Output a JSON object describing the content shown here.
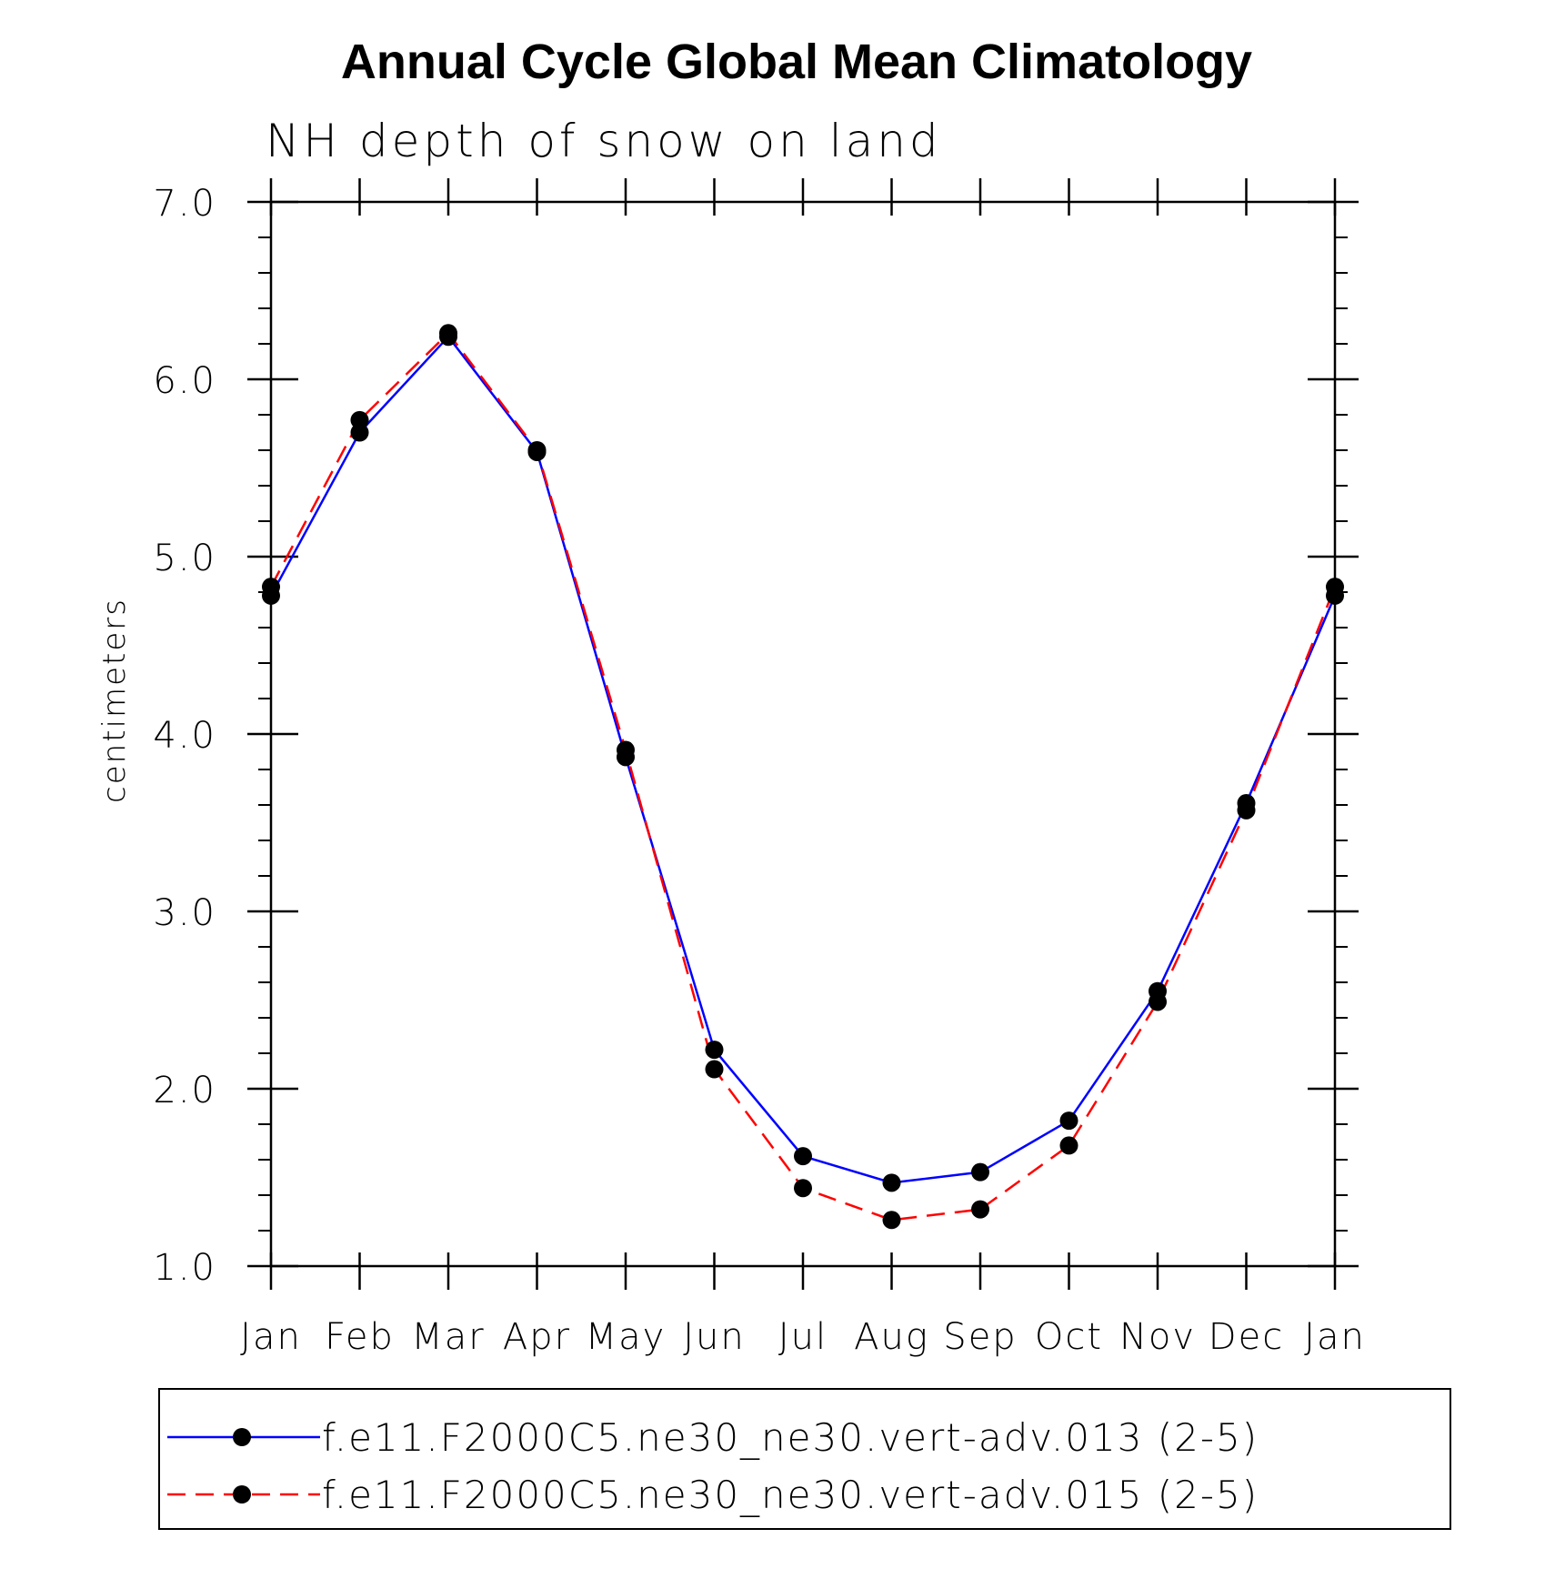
{
  "chart_data": {
    "type": "line",
    "title": "Annual Cycle Global Mean Climatology",
    "subtitle": "NH depth of snow on land",
    "ylabel": "centimeters",
    "xlabel": "",
    "categories": [
      "Jan",
      "Feb",
      "Mar",
      "Apr",
      "May",
      "Jun",
      "Jul",
      "Aug",
      "Sep",
      "Oct",
      "Nov",
      "Dec",
      "Jan"
    ],
    "ylim": [
      1.0,
      7.0
    ],
    "yticks": [
      "1.0",
      "2.0",
      "3.0",
      "4.0",
      "5.0",
      "6.0",
      "7.0"
    ],
    "series": [
      {
        "name": "f.e11.F2000C5.ne30_ne30.vert-adv.013 (2-5)",
        "color": "#0000ff",
        "dash": "solid",
        "values": [
          4.78,
          5.7,
          6.24,
          5.59,
          3.87,
          2.22,
          1.62,
          1.47,
          1.53,
          1.82,
          2.55,
          3.61,
          4.78
        ]
      },
      {
        "name": "f.e11.F2000C5.ne30_ne30.vert-adv.015 (2-5)",
        "color": "#ff0000",
        "dash": "dashed",
        "values": [
          4.83,
          5.77,
          6.26,
          5.6,
          3.91,
          2.11,
          1.44,
          1.26,
          1.32,
          1.68,
          2.49,
          3.57,
          4.83
        ]
      }
    ]
  }
}
